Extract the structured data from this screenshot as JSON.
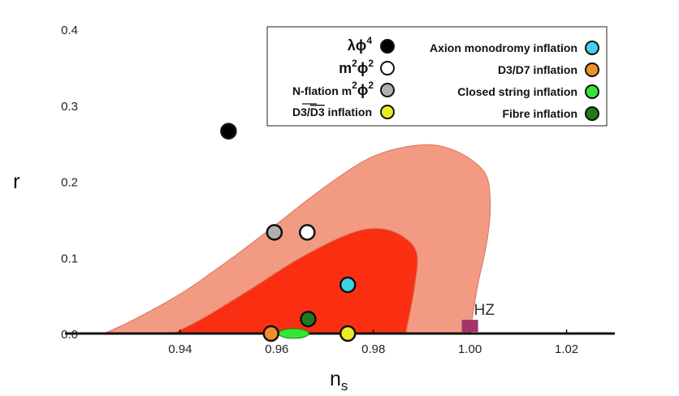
{
  "chart_data": {
    "type": "scatter",
    "xlabel": "n",
    "xlabel_sub": "s",
    "ylabel": "r",
    "xlim": [
      0.92,
      1.03
    ],
    "ylim": [
      0,
      0.4
    ],
    "x_ticks": [
      "0.94",
      "0.96",
      "0.98",
      "1.00",
      "1.02"
    ],
    "x_tick_values": [
      0.94,
      0.96,
      0.98,
      1.0,
      1.02
    ],
    "y_ticks": [
      "0.0",
      "0.1",
      "0.2",
      "0.3",
      "0.4"
    ],
    "y_tick_values": [
      0.0,
      0.1,
      0.2,
      0.3,
      0.4
    ],
    "grid": false,
    "legend_placement": "top-right",
    "contours": [
      {
        "name": "outer",
        "color": "#f39a82",
        "points": [
          [
            0.9242,
            0.0
          ],
          [
            0.93,
            0.017
          ],
          [
            0.94,
            0.052
          ],
          [
            0.95,
            0.096
          ],
          [
            0.96,
            0.144
          ],
          [
            0.97,
            0.193
          ],
          [
            0.98,
            0.233
          ],
          [
            0.99,
            0.248
          ],
          [
            0.997,
            0.24
          ],
          [
            1.003,
            0.212
          ],
          [
            1.0042,
            0.17
          ],
          [
            1.0035,
            0.12
          ],
          [
            1.0015,
            0.06
          ],
          [
            1.0,
            0.0
          ]
        ]
      },
      {
        "name": "inner",
        "color": "#fa2f12",
        "points": [
          [
            0.9385,
            0.0
          ],
          [
            0.945,
            0.021
          ],
          [
            0.955,
            0.06
          ],
          [
            0.965,
            0.1
          ],
          [
            0.975,
            0.131
          ],
          [
            0.981,
            0.138
          ],
          [
            0.986,
            0.128
          ],
          [
            0.989,
            0.105
          ],
          [
            0.9885,
            0.06
          ],
          [
            0.9867,
            0.0
          ]
        ]
      }
    ],
    "points": [
      {
        "name": "HZ",
        "x": 1.0,
        "y": 0.002,
        "marker": "square",
        "color": "#a4336b",
        "label": "HZ"
      },
      {
        "x": 0.95,
        "y": 0.266,
        "color": "#000000"
      },
      {
        "x": 0.9595,
        "y": 0.133,
        "color": "#b0b0b0"
      },
      {
        "x": 0.9663,
        "y": 0.133,
        "color": "#ffffff"
      },
      {
        "x": 0.9747,
        "y": 0.064,
        "color": "#3fd4e5"
      },
      {
        "x": 0.9665,
        "y": 0.019,
        "color": "#1d7a1d"
      },
      {
        "x": 0.9588,
        "y": 0.0,
        "color": "#f0902a"
      },
      {
        "x": 0.9747,
        "y": 0.0,
        "color": "#eaeb23"
      },
      {
        "x": 0.9635,
        "y": 0.0,
        "color": "#33e633",
        "marker": "ellipse",
        "width": 0.0063
      }
    ]
  },
  "legend": {
    "left": [
      {
        "label": "λϕ",
        "sup": "4",
        "color": "#000000"
      },
      {
        "label": "m",
        "sup": "2",
        "label2": "ϕ",
        "sup2": "2",
        "color": "#ffffff"
      },
      {
        "label": "N-flation m",
        "sup": "2",
        "label2": "ϕ",
        "sup2": "2",
        "color": "#b0b0b0"
      },
      {
        "label": "D3/",
        "label2": "D3",
        "label3": " inflation",
        "color": "#eaeb23"
      }
    ],
    "right": [
      {
        "label": "Axion monodromy inflation",
        "color": "#3fd4e5"
      },
      {
        "label": "D3/D7 inflation",
        "color": "#f0902a"
      },
      {
        "label": "Closed string inflation",
        "color": "#33e633"
      },
      {
        "label": "Fibre inflation",
        "color": "#1d7a1d"
      }
    ]
  }
}
